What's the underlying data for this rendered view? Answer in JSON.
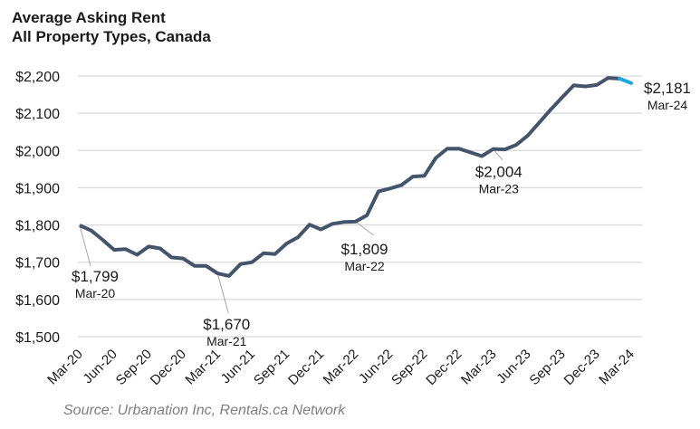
{
  "chart_data": {
    "type": "line",
    "title": "Average Asking Rent",
    "subtitle": "All Property Types, Canada",
    "source": "Source: Urbanation Inc, Rentals.ca Network",
    "xlabel": "",
    "ylabel": "",
    "ylim": [
      1500,
      2200
    ],
    "yticks": [
      "$1,500",
      "$1,600",
      "$1,700",
      "$1,800",
      "$1,900",
      "$2,000",
      "$2,100",
      "$2,200"
    ],
    "ytick_values": [
      1500,
      1600,
      1700,
      1800,
      1900,
      2000,
      2100,
      2200
    ],
    "xticks": [
      "Mar-20",
      "Jun-20",
      "Sep-20",
      "Dec-20",
      "Mar-21",
      "Jun-21",
      "Sep-21",
      "Dec-21",
      "Mar-22",
      "Jun-22",
      "Sep-22",
      "Dec-22",
      "Mar-23",
      "Jun-23",
      "Sep-23",
      "Dec-23",
      "Mar-24"
    ],
    "grid": true,
    "colors": {
      "line": "#44546a",
      "latest": "#1aa7e0",
      "grid": "#d9d9d9",
      "leader": "#a6a6a6"
    },
    "x": [
      "Mar-20",
      "Apr-20",
      "May-20",
      "Jun-20",
      "Jul-20",
      "Aug-20",
      "Sep-20",
      "Oct-20",
      "Nov-20",
      "Dec-20",
      "Jan-21",
      "Feb-21",
      "Mar-21",
      "Apr-21",
      "May-21",
      "Jun-21",
      "Jul-21",
      "Aug-21",
      "Sep-21",
      "Oct-21",
      "Nov-21",
      "Dec-21",
      "Jan-22",
      "Feb-22",
      "Mar-22",
      "Apr-22",
      "May-22",
      "Jun-22",
      "Jul-22",
      "Aug-22",
      "Sep-22",
      "Oct-22",
      "Nov-22",
      "Dec-22",
      "Jan-23",
      "Feb-23",
      "Mar-23",
      "Apr-23",
      "May-23",
      "Jun-23",
      "Jul-23",
      "Aug-23",
      "Sep-23",
      "Oct-23",
      "Nov-23",
      "Dec-23",
      "Jan-24",
      "Feb-24",
      "Mar-24"
    ],
    "values": [
      1799,
      1785,
      1760,
      1733,
      1735,
      1720,
      1742,
      1737,
      1713,
      1710,
      1690,
      1690,
      1670,
      1663,
      1695,
      1700,
      1724,
      1722,
      1750,
      1767,
      1801,
      1788,
      1803,
      1808,
      1809,
      1826,
      1890,
      1898,
      1907,
      1930,
      1932,
      1980,
      2005,
      2005,
      1995,
      1985,
      2004,
      2003,
      2015,
      2040,
      2075,
      2110,
      2143,
      2175,
      2172,
      2176,
      2195,
      2193,
      2181
    ],
    "annotations": [
      {
        "index": 0,
        "value": "$1,799",
        "date": "Mar-20"
      },
      {
        "index": 12,
        "value": "$1,670",
        "date": "Mar-21"
      },
      {
        "index": 24,
        "value": "$1,809",
        "date": "Mar-22"
      },
      {
        "index": 36,
        "value": "$2,004",
        "date": "Mar-23"
      },
      {
        "index": 48,
        "value": "$2,181",
        "date": "Mar-24"
      }
    ]
  }
}
